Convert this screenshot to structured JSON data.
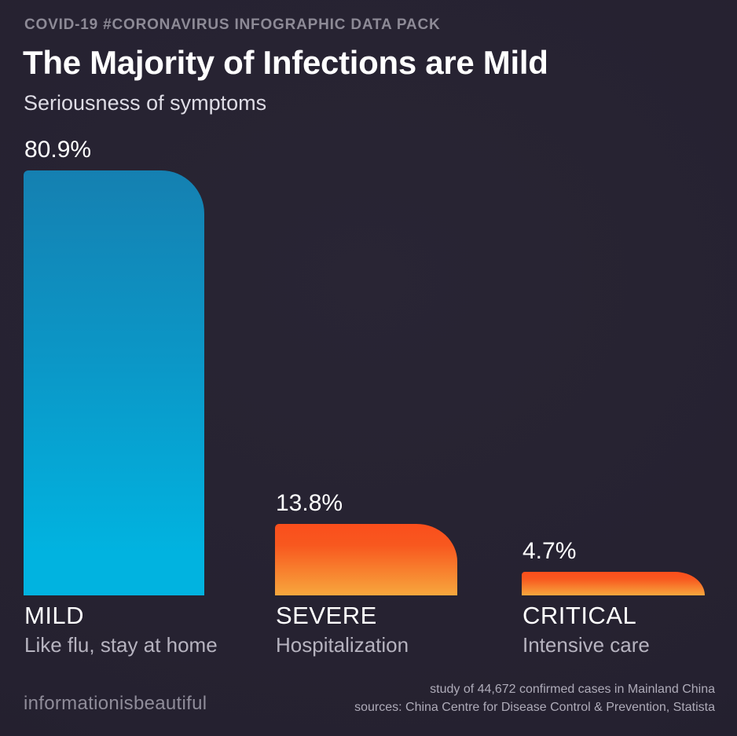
{
  "page": {
    "background_color": "#252130",
    "accent_blue": "#01b3e0",
    "accent_orange": "#fa4e1c"
  },
  "header": {
    "eyebrow": "COVID-19 #CORONAVIRUS INFOGRAPHIC DATA PACK",
    "title": "The Majority of Infections are Mild",
    "subtitle": "Seriousness of symptoms"
  },
  "chart_data": {
    "type": "bar",
    "orientation": "vertical",
    "title": "The Majority of Infections are Mild",
    "subtitle": "Seriousness of symptoms",
    "categories": [
      "MILD",
      "SEVERE",
      "CRITICAL"
    ],
    "values": [
      80.9,
      13.8,
      4.7
    ],
    "unit": "%",
    "ylim": [
      0,
      100
    ],
    "grid": false,
    "legend": false,
    "bars": [
      {
        "category": "MILD",
        "value": 80.9,
        "value_label": "80.9%",
        "sublabel": "Like flu, stay at home",
        "color_top": "#1580b1",
        "color_bottom": "#01b3e0"
      },
      {
        "category": "SEVERE",
        "value": 13.8,
        "value_label": "13.8%",
        "sublabel": "Hospitalization",
        "color_top": "#fa4e1c",
        "color_bottom": "#f7a73d"
      },
      {
        "category": "CRITICAL",
        "value": 4.7,
        "value_label": "4.7%",
        "sublabel": "Intensive care",
        "color_top": "#fa4e1c",
        "color_bottom": "#f7a73d"
      }
    ]
  },
  "footer": {
    "brand": "informationisbeautiful",
    "study_note": "study of 44,672 confirmed cases in Mainland China",
    "sources_note": "sources: China Centre for Disease Control & Prevention, Statista"
  }
}
